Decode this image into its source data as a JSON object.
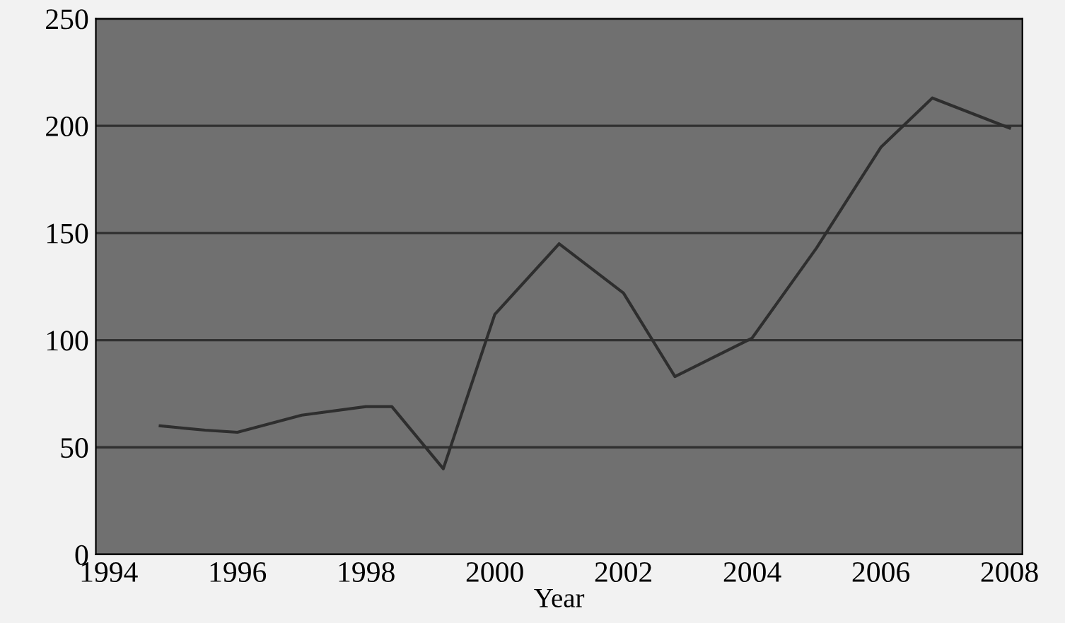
{
  "chart_data": {
    "type": "line",
    "xlabel": "Year",
    "series": [
      {
        "color": "#2e2e2e",
        "x": [
          1994.8,
          1995.5,
          1996,
          1997,
          1998,
          1998.4,
          1999.2,
          2000,
          2001,
          2002,
          2002.8,
          2004,
          2005,
          2006,
          2006.8,
          2008
        ],
        "values": [
          60,
          58,
          57,
          65,
          69,
          69,
          40,
          112,
          145,
          122,
          83,
          101,
          143,
          190,
          213,
          199
        ]
      }
    ],
    "xlim": [
      1993.8,
      2008.2
    ],
    "xticks": [
      1994,
      1996,
      1998,
      2000,
      2002,
      2004,
      2006,
      2008
    ],
    "ylim": [
      0,
      250
    ],
    "yticks": [
      0,
      50,
      100,
      150,
      200,
      250
    ],
    "grid": "y",
    "marker": "none",
    "line_style": "solid"
  }
}
